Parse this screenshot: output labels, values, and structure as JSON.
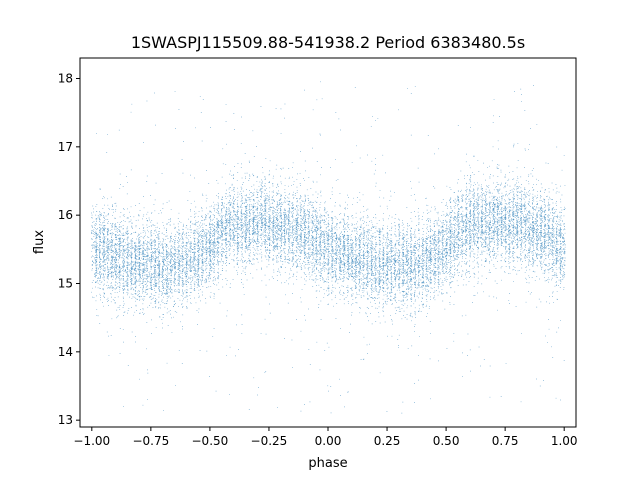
{
  "chart_data": {
    "type": "scatter",
    "title": "1SWASPJ115509.88-541938.2 Period 6383480.5s",
    "xlabel": "phase",
    "ylabel": "flux",
    "xlim": [
      -1.05,
      1.05
    ],
    "ylim": [
      12.9,
      18.3
    ],
    "xticks": [
      -1.0,
      -0.75,
      -0.5,
      -0.25,
      0.0,
      0.25,
      0.5,
      0.75,
      1.0
    ],
    "xtick_labels": [
      "−1.00",
      "−0.75",
      "−0.50",
      "−0.25",
      "0.00",
      "0.25",
      "0.50",
      "0.75",
      "1.00"
    ],
    "yticks": [
      13,
      14,
      15,
      16,
      17,
      18
    ],
    "ytick_labels": [
      "13",
      "14",
      "15",
      "16",
      "17",
      "18"
    ],
    "grid": false,
    "legend": "none",
    "point_color": "#1f77b4",
    "phase_range": [
      -1.0,
      1.0
    ],
    "flux_profile": {
      "phase": [
        0.0,
        0.05,
        0.1,
        0.15,
        0.2,
        0.25,
        0.3,
        0.35,
        0.4,
        0.45,
        0.5,
        0.55,
        0.6,
        0.65,
        0.7,
        0.75,
        0.8,
        0.85,
        0.9,
        0.95,
        1.0
      ],
      "median_flux": [
        15.5,
        15.45,
        15.4,
        15.35,
        15.3,
        15.3,
        15.25,
        15.25,
        15.3,
        15.4,
        15.55,
        15.75,
        15.85,
        15.85,
        15.9,
        15.9,
        15.85,
        15.8,
        15.75,
        15.65,
        15.5
      ],
      "scatter": 0.3,
      "outlier_range": [
        13.1,
        18.0
      ]
    },
    "n_points": 16000
  }
}
